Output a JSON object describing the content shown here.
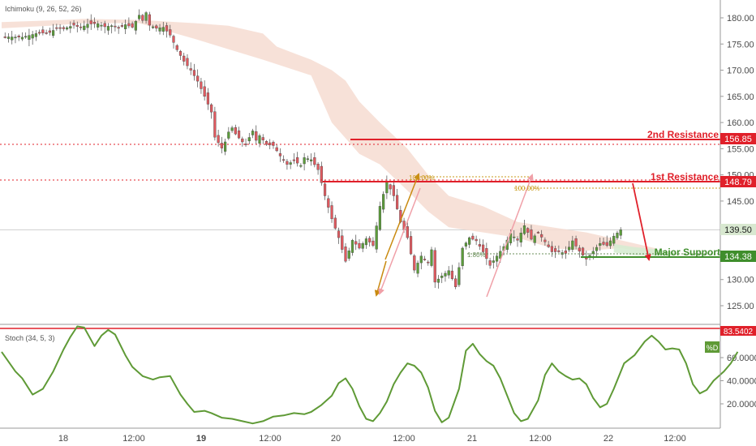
{
  "indicators": {
    "main": "Ichimoku (9, 26, 52, 26)",
    "sub": "Stoch (34, 5, 3)",
    "sub_badge": "%D"
  },
  "annotations": {
    "resistance2": "2nd Resistance",
    "resistance1": "1st Resistance",
    "support": "Major Support",
    "fib_a": "100.00%",
    "fib_b": "100.00%",
    "fib_c": "1.80%"
  },
  "price_tags": {
    "r2": "156.85",
    "r1": "148.79",
    "current": "139.50",
    "support": "134.38",
    "stoch_top": "83.5402"
  },
  "colors": {
    "background": "#ffffff",
    "candle_fill": "#5b9c3a",
    "candle_wick": "#4a4a4a",
    "candle_down": "#e0595f",
    "cloud_bear": "#f6dcd1",
    "cloud_bull": "#d6ecd2",
    "resistance": "#e0202a",
    "support": "#3f8e2c",
    "stoch_line": "#5f9a36",
    "fib_gold": "#c99a18",
    "arrow_pink": "#f0a0a8",
    "arrow_gold": "#c98a10"
  },
  "chart_data": {
    "type": "candlestick",
    "price_axis": {
      "ticks": [
        "180.00",
        "175.00",
        "170.00",
        "165.00",
        "160.00",
        "155.00",
        "150.00",
        "145.00",
        "140.00",
        "135.00",
        "130.00",
        "125.00"
      ],
      "range": [
        121,
        183
      ]
    },
    "time_axis": [
      "18",
      "12:00",
      "19",
      "12:00",
      "20",
      "12:00",
      "21",
      "12:00",
      "22",
      "12:00"
    ],
    "stoch_axis": {
      "ticks": [
        "60.0000",
        "40.0000",
        "20.0000"
      ],
      "range": [
        0,
        90
      ]
    },
    "levels": [
      {
        "name": "2nd Resistance",
        "value": 156.85
      },
      {
        "name": "1st Resistance",
        "value": 148.79
      },
      {
        "name": "Major Support",
        "value": 134.38
      },
      {
        "name": "last price",
        "value": 139.5
      }
    ],
    "close_path": [
      [
        0,
        176.4
      ],
      [
        6,
        176.3
      ],
      [
        10,
        177.0
      ],
      [
        14,
        177.2
      ],
      [
        16,
        178.0
      ],
      [
        18,
        177.9
      ],
      [
        21,
        178.6
      ],
      [
        23,
        178.1
      ],
      [
        25,
        178.8
      ],
      [
        28,
        178.9
      ],
      [
        30,
        178.3
      ],
      [
        32,
        178.5
      ],
      [
        34,
        178.0
      ],
      [
        36,
        178.7
      ],
      [
        38,
        178.2
      ],
      [
        40,
        180.5
      ],
      [
        41,
        179.5
      ],
      [
        42,
        181.0
      ],
      [
        43,
        178.6
      ],
      [
        45,
        178.0
      ],
      [
        47,
        178.2
      ],
      [
        49,
        176.7
      ],
      [
        51,
        173.9
      ],
      [
        53,
        171.7
      ],
      [
        55,
        170.0
      ],
      [
        57,
        167.9
      ],
      [
        59,
        165.0
      ],
      [
        61,
        162.0
      ],
      [
        62,
        157.2
      ],
      [
        64,
        155.1
      ],
      [
        65,
        156.3
      ],
      [
        66,
        158.2
      ],
      [
        67,
        159.0
      ],
      [
        68,
        157.8
      ],
      [
        70,
        156.3
      ],
      [
        71,
        155.9
      ],
      [
        73,
        158.4
      ],
      [
        74,
        156.6
      ],
      [
        75,
        157.5
      ],
      [
        77,
        155.8
      ],
      [
        79,
        155.6
      ],
      [
        81,
        153.6
      ],
      [
        83,
        152.0
      ],
      [
        85,
        152.7
      ],
      [
        87,
        151.8
      ],
      [
        88,
        153.3
      ],
      [
        90,
        152.9
      ],
      [
        92,
        151.0
      ],
      [
        94,
        146.0
      ],
      [
        96,
        141.6
      ],
      [
        98,
        138.0
      ],
      [
        100,
        133.5
      ],
      [
        102,
        137.5
      ],
      [
        104,
        136.0
      ],
      [
        106,
        137.8
      ],
      [
        108,
        136.5
      ],
      [
        110,
        144.0
      ],
      [
        112,
        148.6
      ],
      [
        114,
        146.0
      ],
      [
        116,
        141.0
      ],
      [
        118,
        138.0
      ],
      [
        120,
        131.8
      ],
      [
        122,
        134.5
      ],
      [
        124,
        133.2
      ],
      [
        125,
        135.7
      ],
      [
        126,
        129.5
      ],
      [
        128,
        130.7
      ],
      [
        130,
        131.7
      ],
      [
        132,
        128.6
      ],
      [
        134,
        136.0
      ],
      [
        136,
        138.0
      ],
      [
        138,
        137.4
      ],
      [
        140,
        135.3
      ],
      [
        142,
        132.7
      ],
      [
        144,
        134.5
      ],
      [
        146,
        136.3
      ],
      [
        148,
        138.8
      ],
      [
        150,
        137.5
      ],
      [
        152,
        140.3
      ],
      [
        154,
        137.7
      ],
      [
        156,
        139.0
      ],
      [
        158,
        137.2
      ],
      [
        160,
        135.3
      ],
      [
        162,
        135.3
      ],
      [
        164,
        135.0
      ],
      [
        166,
        137.4
      ],
      [
        168,
        135.4
      ],
      [
        170,
        133.9
      ],
      [
        172,
        135.4
      ],
      [
        174,
        136.9
      ],
      [
        176,
        136.5
      ],
      [
        178,
        138.3
      ],
      [
        180,
        139.5
      ]
    ],
    "cloud_lower": [
      [
        0,
        178.0
      ],
      [
        14,
        178.5
      ],
      [
        24,
        179.0
      ],
      [
        40,
        179.0
      ],
      [
        56,
        176.0
      ],
      [
        66,
        174.0
      ],
      [
        76,
        172.0
      ],
      [
        90,
        169.0
      ],
      [
        96,
        160.0
      ],
      [
        104,
        154.0
      ],
      [
        110,
        152.0
      ],
      [
        118,
        147.0
      ],
      [
        124,
        143.0
      ],
      [
        130,
        140.0
      ],
      [
        140,
        139.0
      ],
      [
        150,
        138.0
      ],
      [
        160,
        136.0
      ],
      [
        170,
        135.5
      ],
      [
        180,
        136.0
      ],
      [
        190,
        135.0
      ]
    ],
    "cloud_upper": [
      [
        0,
        179.2
      ],
      [
        14,
        179.5
      ],
      [
        24,
        179.8
      ],
      [
        40,
        179.6
      ],
      [
        56,
        179.0
      ],
      [
        66,
        178.5
      ],
      [
        76,
        177.0
      ],
      [
        80,
        174.5
      ],
      [
        86,
        173.0
      ],
      [
        90,
        172.0
      ],
      [
        96,
        170.0
      ],
      [
        100,
        168.0
      ],
      [
        104,
        164.0
      ],
      [
        110,
        160.0
      ],
      [
        118,
        155.0
      ],
      [
        124,
        150.0
      ],
      [
        130,
        146.0
      ],
      [
        140,
        144.0
      ],
      [
        150,
        141.0
      ],
      [
        160,
        140.0
      ],
      [
        170,
        139.0
      ],
      [
        180,
        137.5
      ],
      [
        190,
        136.0
      ]
    ],
    "stoch_d": [
      [
        0,
        65
      ],
      [
        4,
        48
      ],
      [
        6,
        42
      ],
      [
        9,
        28
      ],
      [
        12,
        33
      ],
      [
        15,
        48
      ],
      [
        18,
        67
      ],
      [
        20,
        78
      ],
      [
        22,
        87
      ],
      [
        24,
        86
      ],
      [
        27,
        70
      ],
      [
        29,
        79
      ],
      [
        31,
        84
      ],
      [
        33,
        80
      ],
      [
        36,
        62
      ],
      [
        38,
        52
      ],
      [
        41,
        44
      ],
      [
        44,
        41
      ],
      [
        46,
        43
      ],
      [
        49,
        44
      ],
      [
        52,
        28
      ],
      [
        54,
        20
      ],
      [
        56,
        13
      ],
      [
        59,
        14
      ],
      [
        61,
        12
      ],
      [
        64,
        8
      ],
      [
        67,
        7
      ],
      [
        70,
        5
      ],
      [
        73,
        3
      ],
      [
        76,
        5
      ],
      [
        79,
        9
      ],
      [
        82,
        10
      ],
      [
        85,
        12
      ],
      [
        88,
        11
      ],
      [
        90,
        13
      ],
      [
        93,
        19
      ],
      [
        96,
        27
      ],
      [
        98,
        38
      ],
      [
        100,
        42
      ],
      [
        102,
        33
      ],
      [
        104,
        18
      ],
      [
        106,
        7
      ],
      [
        108,
        5
      ],
      [
        110,
        12
      ],
      [
        112,
        22
      ],
      [
        114,
        37
      ],
      [
        116,
        47
      ],
      [
        118,
        55
      ],
      [
        120,
        53
      ],
      [
        122,
        47
      ],
      [
        124,
        34
      ],
      [
        126,
        14
      ],
      [
        128,
        4
      ],
      [
        130,
        8
      ],
      [
        133,
        33
      ],
      [
        135,
        66
      ],
      [
        137,
        72
      ],
      [
        139,
        63
      ],
      [
        141,
        57
      ],
      [
        143,
        53
      ],
      [
        145,
        42
      ],
      [
        147,
        27
      ],
      [
        149,
        12
      ],
      [
        151,
        5
      ],
      [
        153,
        7
      ],
      [
        156,
        23
      ],
      [
        158,
        45
      ],
      [
        160,
        55
      ],
      [
        162,
        48
      ],
      [
        164,
        44
      ],
      [
        166,
        41
      ],
      [
        168,
        42
      ],
      [
        170,
        37
      ],
      [
        172,
        25
      ],
      [
        174,
        17
      ],
      [
        176,
        20
      ],
      [
        178,
        33
      ],
      [
        181,
        55
      ],
      [
        184,
        62
      ],
      [
        187,
        74
      ],
      [
        189,
        79
      ],
      [
        191,
        74
      ],
      [
        193,
        67
      ],
      [
        195,
        68
      ],
      [
        197,
        67
      ],
      [
        199,
        55
      ],
      [
        201,
        37
      ],
      [
        203,
        29
      ],
      [
        205,
        32
      ],
      [
        207,
        40
      ],
      [
        210,
        48
      ],
      [
        212,
        55
      ],
      [
        214,
        65
      ]
    ]
  }
}
